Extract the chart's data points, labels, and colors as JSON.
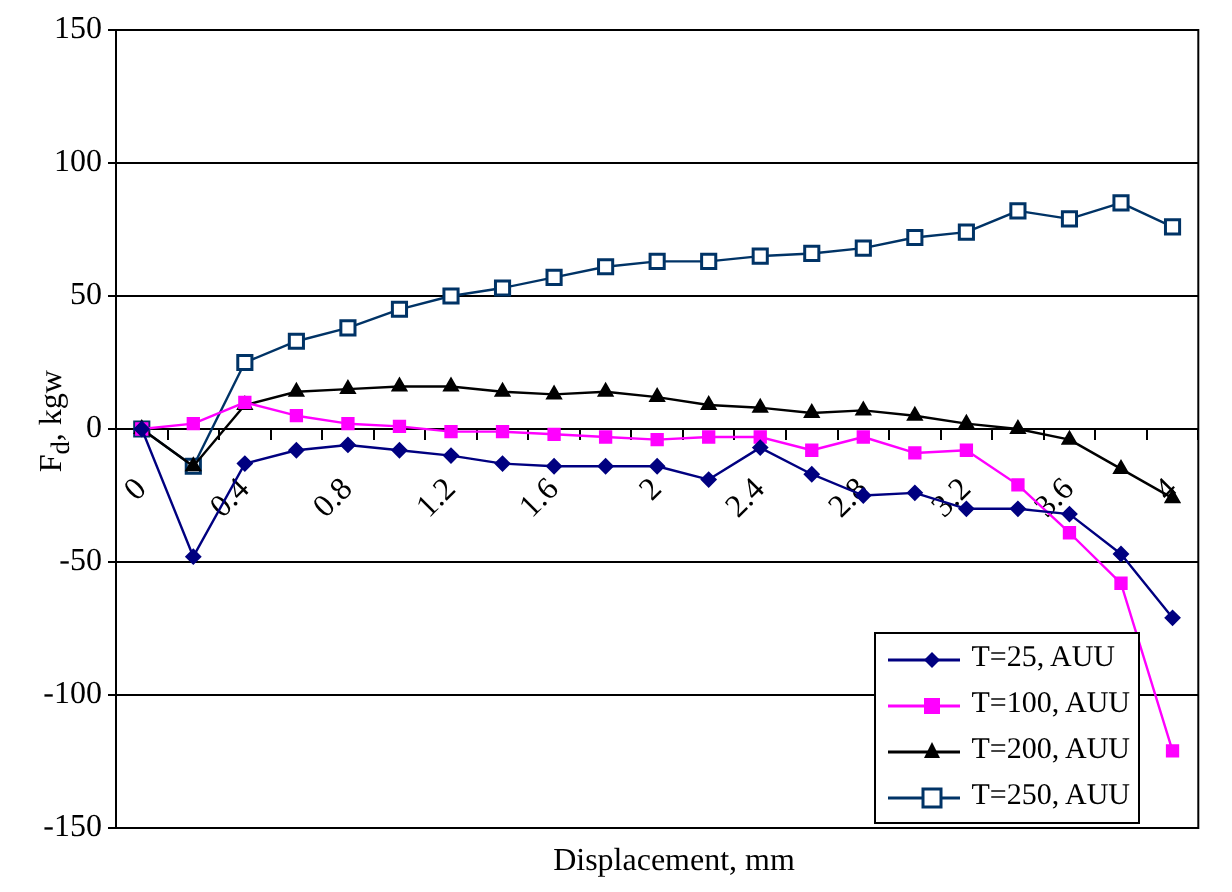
{
  "chart_data": {
    "type": "line",
    "xlabel": "Displacement, mm",
    "ylabel": "F$_{d}$, kgw",
    "categories": [
      "0",
      null,
      "0.4",
      null,
      "0.8",
      null,
      "1.2",
      null,
      "1.6",
      null,
      "2",
      null,
      "2.4",
      null,
      "2.8",
      null,
      "3.2",
      null,
      "3.6",
      null,
      "4"
    ],
    "series": [
      {
        "name": "T=25, AUU",
        "color": "#000080",
        "marker": "diamond",
        "values": [
          0,
          -48,
          -13,
          -8,
          -6,
          -8,
          -10,
          -13,
          -14,
          -14,
          -14,
          -19,
          -7,
          -17,
          -25,
          -24,
          -30,
          -30,
          -32,
          -47,
          -71
        ]
      },
      {
        "name": "T=100, AUU",
        "color": "#ff00ff",
        "marker": "square",
        "values": [
          0,
          2,
          10,
          5,
          2,
          1,
          -1,
          -1,
          -2,
          -3,
          -4,
          -3,
          -3,
          -8,
          -3,
          -9,
          -8,
          -21,
          -39,
          -58,
          -121
        ]
      },
      {
        "name": "T=200, AUU",
        "color": "#000000",
        "marker": "triangle",
        "values": [
          0,
          -14,
          9,
          14,
          15,
          16,
          16,
          14,
          13,
          14,
          12,
          9,
          8,
          6,
          7,
          5,
          2,
          0,
          -4,
          -15,
          -26
        ]
      },
      {
        "name": "T=250, AUU",
        "color": "#003366",
        "marker": "square_open",
        "values": [
          0,
          -14,
          25,
          33,
          38,
          45,
          50,
          53,
          57,
          61,
          63,
          63,
          65,
          66,
          68,
          72,
          74,
          82,
          79,
          85,
          76
        ]
      }
    ],
    "ylim": [
      -150,
      150
    ],
    "yticks": [
      -150,
      -100,
      -50,
      0,
      50,
      100,
      150
    ],
    "grid": "y",
    "legend": "bottom right"
  }
}
